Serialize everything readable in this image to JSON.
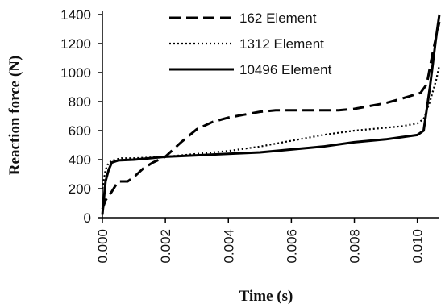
{
  "chart_data": {
    "type": "line",
    "title": "",
    "xlabel": "Time (s)",
    "ylabel": "Reaction force (N)",
    "xlim": [
      0,
      0.0107
    ],
    "ylim": [
      0,
      1400
    ],
    "x_ticks": [
      "0.000",
      "0.002",
      "0.004",
      "0.006",
      "0.008",
      "0.010"
    ],
    "y_ticks": [
      "0",
      "200",
      "400",
      "600",
      "800",
      "1000",
      "1200",
      "1400"
    ],
    "grid": false,
    "legend_position": "top-right",
    "series": [
      {
        "name": "162 Element",
        "style": "dashed",
        "color": "#000000",
        "x": [
          0,
          0.0001,
          0.0003,
          0.0005,
          0.0008,
          0.001,
          0.0013,
          0.0016,
          0.002,
          0.0025,
          0.003,
          0.0035,
          0.004,
          0.0045,
          0.005,
          0.0055,
          0.006,
          0.0065,
          0.007,
          0.0075,
          0.008,
          0.0085,
          0.009,
          0.0095,
          0.0101,
          0.0103,
          0.0105,
          0.0107
        ],
        "y": [
          60,
          120,
          180,
          250,
          250,
          280,
          340,
          380,
          420,
          520,
          610,
          660,
          690,
          710,
          730,
          740,
          740,
          740,
          740,
          740,
          750,
          770,
          790,
          820,
          860,
          920,
          1150,
          1350
        ]
      },
      {
        "name": "1312 Element",
        "style": "dotted",
        "color": "#000000",
        "x": [
          0,
          0.0001,
          0.0002,
          0.0004,
          0.0006,
          0.001,
          0.0015,
          0.002,
          0.003,
          0.004,
          0.005,
          0.006,
          0.007,
          0.008,
          0.009,
          0.0095,
          0.01,
          0.0102,
          0.0104,
          0.0106,
          0.0107
        ],
        "y": [
          200,
          330,
          380,
          400,
          410,
          410,
          415,
          420,
          440,
          460,
          490,
          530,
          570,
          600,
          620,
          630,
          650,
          680,
          800,
          950,
          1050
        ]
      },
      {
        "name": "10496 Element",
        "style": "solid",
        "color": "#000000",
        "x": [
          0,
          0.0001,
          0.0002,
          0.0003,
          0.0005,
          0.001,
          0.0015,
          0.002,
          0.003,
          0.004,
          0.005,
          0.006,
          0.007,
          0.008,
          0.009,
          0.0095,
          0.01,
          0.0102,
          0.0104,
          0.0106,
          0.0107
        ],
        "y": [
          20,
          250,
          330,
          380,
          395,
          400,
          410,
          420,
          430,
          440,
          450,
          470,
          490,
          520,
          540,
          555,
          570,
          600,
          900,
          1250,
          1400
        ]
      }
    ]
  }
}
